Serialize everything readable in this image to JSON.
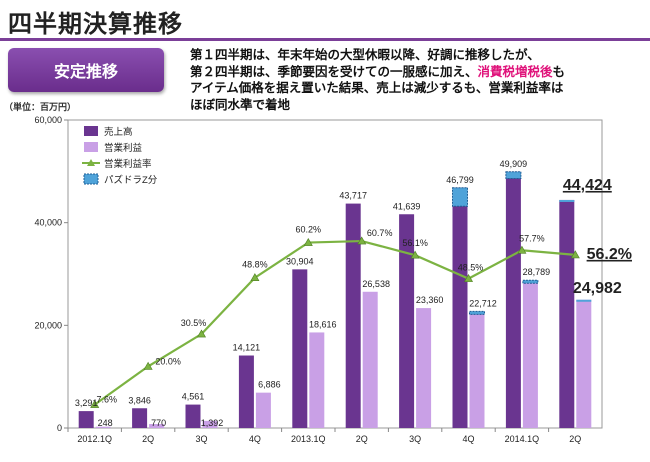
{
  "header": {
    "title": "四半期決算推移",
    "badge": "安定推移",
    "desc_line1": "第１四半期は、年末年始の大型休暇以降、好調に推移したが、",
    "desc_line2a": "第２四半期は、季節要因を受けての一服感に加え、",
    "desc_line2b": "消費税増税後",
    "desc_line2c": "も",
    "desc_line3": "アイテム価格を据え置いた結果、売上は減少するも、営業利益率は",
    "desc_line4": "ほぼ同水準で着地"
  },
  "colors": {
    "sales": "#6a3590",
    "profit": "#c9a0e6",
    "margin": "#7cb342",
    "pazudora": "#4fa3d9",
    "accent": "#7b3f98"
  },
  "chart_data": {
    "type": "bar",
    "unit_label": "（単位：百万円）",
    "categories": [
      "2012.1Q",
      "2Q",
      "3Q",
      "4Q",
      "2013.1Q",
      "2Q",
      "3Q",
      "4Q",
      "2014.1Q",
      "2Q"
    ],
    "ylim": [
      0,
      60000
    ],
    "yticks": [
      "0",
      "20,000",
      "40,000",
      "60,000"
    ],
    "series": [
      {
        "name": "売上高",
        "values": [
          3291,
          3846,
          4561,
          14121,
          30904,
          43717,
          41639,
          46799,
          49909,
          44424
        ],
        "labels": [
          "3,291",
          "3,846",
          "4,561",
          "14,121",
          "30,904",
          "43,717",
          "41,639",
          "46,799",
          "49,909",
          "44,424"
        ]
      },
      {
        "name": "営業利益",
        "values": [
          248,
          770,
          1392,
          6886,
          18616,
          26538,
          23360,
          22712,
          28789,
          24982
        ],
        "labels": [
          "248",
          "770",
          "1,392",
          "6,886",
          "18,616",
          "26,538",
          "23,360",
          "22,712",
          "28,789",
          "24,982"
        ]
      },
      {
        "name": "営業利益率",
        "values": [
          7.6,
          20.0,
          30.5,
          48.8,
          60.2,
          60.7,
          56.1,
          48.5,
          57.7,
          56.2
        ],
        "labels": [
          "7.6%",
          "20.0%",
          "30.5%",
          "48.8%",
          "60.2%",
          "60.7%",
          "56.1%",
          "48.5%",
          "57.7%",
          "56.2%"
        ]
      },
      {
        "name": "パズドラZ分"
      }
    ],
    "legend_position": "top-left"
  }
}
